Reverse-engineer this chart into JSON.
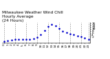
{
  "title": "Milwaukee Weather Wind Chill\nHourly Average\n(24 Hours)",
  "hours": [
    0,
    1,
    2,
    3,
    4,
    5,
    6,
    7,
    8,
    9,
    10,
    11,
    12,
    13,
    14,
    15,
    16,
    17,
    18,
    19,
    20,
    21,
    22,
    23
  ],
  "wind_chill": [
    -2.5,
    -1.8,
    -1.2,
    -1.0,
    -0.8,
    -0.5,
    -0.5,
    -0.5,
    -0.3,
    1.5,
    4.5,
    8.5,
    13.0,
    15.0,
    13.5,
    10.5,
    8.0,
    6.5,
    5.0,
    4.0,
    3.0,
    2.0,
    0.5,
    -0.8
  ],
  "dot_color": "#0000cc",
  "bg_color": "#ffffff",
  "grid_color": "#888888",
  "grid_hours": [
    0,
    3,
    6,
    9,
    12,
    15,
    18,
    21,
    23
  ],
  "ylim": [
    -4,
    17
  ],
  "yticks": [
    2,
    4,
    6,
    8,
    10,
    12,
    14,
    16
  ],
  "ytick_labels": [
    "2",
    "4",
    "6",
    "8",
    "10",
    "12",
    "14",
    "16"
  ],
  "title_fontsize": 4.2,
  "tick_fontsize": 3.2,
  "markersize": 1.8
}
